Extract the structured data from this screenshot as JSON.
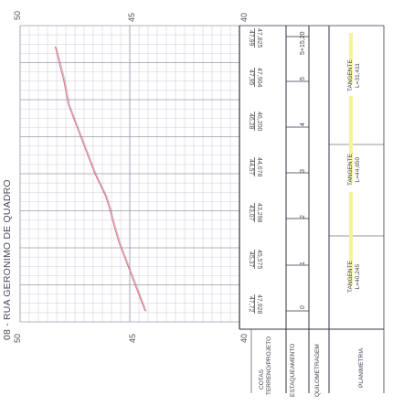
{
  "title": "08 - RUA GERONIMO DE QUADRO",
  "axis": {
    "bottom": [
      "50",
      "45",
      "40"
    ],
    "top": [
      "50",
      "45",
      "40"
    ]
  },
  "row_labels": {
    "cotas": [
      "COTAS",
      "TERRENO/PROJETO"
    ],
    "estaqueamento": "ESTAQUEAMENTO",
    "quilometragem": "QUILOMETRAGEM",
    "planimetria": "PLANIMETRIA"
  },
  "elevations": [
    {
      "station": "0",
      "terreno": "47,928",
      "projeto": "47,72"
    },
    {
      "station": "1",
      "terreno": "45,575",
      "projeto": "45,37"
    },
    {
      "station": "2",
      "terreno": "43,298",
      "projeto": "43,07"
    },
    {
      "station": "3",
      "terreno": "44,678",
      "projeto": "44,57"
    },
    {
      "station": "4",
      "terreno": "46,200",
      "projeto": "46,28"
    },
    {
      "station": "5",
      "terreno": "47,904",
      "projeto": "47,95"
    },
    {
      "station": "5+15,20",
      "terreno": "47,825",
      "projeto": "47,99"
    }
  ],
  "tangents": [
    {
      "label": "TANGENTE",
      "length": "L=40,245"
    },
    {
      "label": "TANGENTE",
      "length": "L=44,650"
    },
    {
      "label": "TANGENTE",
      "length": "L=31,411"
    }
  ],
  "colors": {
    "grid_minor": "#c8c8d8",
    "grid_major": "#9a9aaa",
    "profile_line": "#e07a8a",
    "terrain_line": "#7a6070",
    "tangent_highlight": "#f3f3a0",
    "border": "#333344"
  }
}
